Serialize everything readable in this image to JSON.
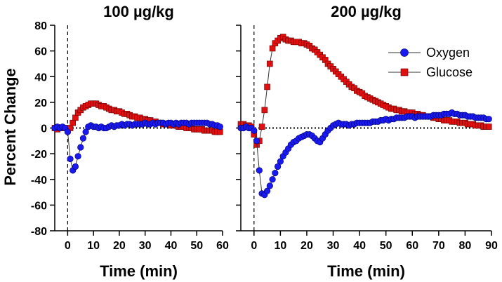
{
  "ylabel": "Percent Change",
  "legend": [
    {
      "name": "Oxygen",
      "color": "#1a1af0",
      "marker": "circle"
    },
    {
      "name": "Glucose",
      "color": "#e01010",
      "marker": "square"
    }
  ],
  "chart_data": [
    {
      "type": "scatter",
      "title": "100 µg/kg",
      "xlabel": "Time (min)",
      "ylabel": "Percent Change",
      "xlim": [
        -5,
        60
      ],
      "ylim": [
        -80,
        80
      ],
      "xticks": [
        0,
        10,
        20,
        30,
        40,
        50,
        60
      ],
      "yticks": [
        -80,
        -60,
        -40,
        -20,
        0,
        20,
        40,
        60,
        80
      ],
      "reference_lines": {
        "y": 0,
        "x": 0
      },
      "series": [
        {
          "name": "Oxygen",
          "x": [
            -5,
            -4,
            -3,
            -2,
            -1,
            0,
            1,
            2,
            3,
            4,
            5,
            6,
            7,
            8,
            9,
            10,
            11,
            12,
            13,
            14,
            15,
            16,
            17,
            18,
            19,
            20,
            21,
            22,
            23,
            24,
            25,
            26,
            27,
            28,
            29,
            30,
            31,
            32,
            33,
            34,
            35,
            36,
            37,
            38,
            39,
            40,
            41,
            42,
            43,
            44,
            45,
            46,
            47,
            48,
            49,
            50,
            51,
            52,
            53,
            54,
            55,
            56,
            57,
            58,
            59
          ],
          "y": [
            0,
            1,
            0,
            1,
            0,
            -3,
            -24,
            -33,
            -30,
            -22,
            -15,
            -8,
            -3,
            1,
            2,
            1,
            1,
            0,
            1,
            0,
            0,
            1,
            2,
            1,
            2,
            2,
            3,
            2,
            3,
            3,
            2,
            3,
            3,
            3,
            3,
            4,
            3,
            3,
            4,
            3,
            4,
            4,
            4,
            3,
            4,
            4,
            3,
            4,
            3,
            4,
            4,
            4,
            3,
            4,
            4,
            4,
            4,
            4,
            4,
            4,
            3,
            3,
            2,
            2,
            1
          ]
        },
        {
          "name": "Glucose",
          "x": [
            -5,
            -4,
            -3,
            -2,
            -1,
            0,
            1,
            2,
            3,
            4,
            5,
            6,
            7,
            8,
            9,
            10,
            11,
            12,
            13,
            14,
            15,
            16,
            17,
            18,
            19,
            20,
            21,
            22,
            23,
            24,
            25,
            26,
            27,
            28,
            29,
            30,
            31,
            32,
            33,
            34,
            35,
            36,
            37,
            38,
            39,
            40,
            41,
            42,
            43,
            44,
            45,
            46,
            47,
            48,
            49,
            50,
            51,
            52,
            53,
            54,
            55,
            56,
            57,
            58,
            59
          ],
          "y": [
            0,
            -1,
            0,
            0,
            0,
            -2,
            0,
            4,
            8,
            12,
            14,
            16,
            17,
            18,
            19,
            19,
            19,
            18,
            17,
            17,
            16,
            15,
            14,
            14,
            13,
            13,
            12,
            11,
            11,
            10,
            9,
            9,
            8,
            8,
            7,
            7,
            6,
            6,
            5,
            5,
            4,
            4,
            3,
            3,
            3,
            2,
            2,
            2,
            1,
            1,
            1,
            0,
            0,
            0,
            -1,
            -1,
            -1,
            -1,
            -2,
            -2,
            -2,
            -2,
            -3,
            -3,
            -3
          ]
        }
      ]
    },
    {
      "type": "scatter",
      "title": "200 µg/kg",
      "xlabel": "Time (min)",
      "ylabel": "",
      "xlim": [
        -5,
        90
      ],
      "ylim": [
        -80,
        80
      ],
      "xticks": [
        0,
        10,
        20,
        30,
        40,
        50,
        60,
        70,
        80,
        90
      ],
      "yticks": [
        -80,
        -60,
        -40,
        -20,
        0,
        20,
        40,
        60,
        80
      ],
      "reference_lines": {
        "y": 0,
        "x": 0
      },
      "series": [
        {
          "name": "Oxygen",
          "x": [
            -5,
            -4,
            -3,
            -2,
            -1,
            0,
            1,
            2,
            3,
            4,
            5,
            6,
            7,
            8,
            9,
            10,
            11,
            12,
            13,
            14,
            15,
            16,
            17,
            18,
            19,
            20,
            21,
            22,
            23,
            24,
            25,
            26,
            27,
            28,
            29,
            30,
            31,
            32,
            33,
            34,
            35,
            36,
            37,
            38,
            39,
            40,
            41,
            42,
            43,
            44,
            45,
            46,
            47,
            48,
            49,
            50,
            51,
            52,
            53,
            54,
            55,
            56,
            57,
            58,
            59,
            60,
            61,
            62,
            63,
            64,
            65,
            66,
            67,
            68,
            69,
            70,
            71,
            72,
            73,
            74,
            75,
            76,
            77,
            78,
            79,
            80,
            81,
            82,
            83,
            84,
            85,
            86,
            87,
            88,
            89
          ],
          "y": [
            0,
            0,
            1,
            0,
            0,
            -2,
            -10,
            -33,
            -51,
            -52,
            -49,
            -45,
            -40,
            -35,
            -30,
            -26,
            -22,
            -19,
            -16,
            -13,
            -11,
            -10,
            -8,
            -7,
            -6,
            -5,
            -5,
            -6,
            -8,
            -10,
            -11,
            -8,
            -5,
            -2,
            0,
            2,
            3,
            4,
            3,
            3,
            3,
            2,
            3,
            3,
            4,
            4,
            4,
            4,
            4,
            4,
            5,
            5,
            5,
            6,
            6,
            7,
            6,
            7,
            7,
            8,
            8,
            8,
            8,
            9,
            9,
            9,
            8,
            9,
            9,
            9,
            9,
            9,
            9,
            10,
            10,
            10,
            10,
            11,
            11,
            11,
            12,
            11,
            11,
            10,
            10,
            10,
            9,
            9,
            9,
            8,
            8,
            8,
            8,
            7,
            7
          ]
        },
        {
          "name": "Glucose",
          "x": [
            -5,
            -4,
            -3,
            -2,
            -1,
            0,
            1,
            2,
            3,
            4,
            5,
            6,
            7,
            8,
            9,
            10,
            11,
            12,
            13,
            14,
            15,
            16,
            17,
            18,
            19,
            20,
            21,
            22,
            23,
            24,
            25,
            26,
            27,
            28,
            29,
            30,
            31,
            32,
            33,
            34,
            35,
            36,
            37,
            38,
            39,
            40,
            41,
            42,
            43,
            44,
            45,
            46,
            47,
            48,
            49,
            50,
            51,
            52,
            53,
            54,
            55,
            56,
            57,
            58,
            59,
            60,
            61,
            62,
            63,
            64,
            65,
            66,
            67,
            68,
            69,
            70,
            71,
            72,
            73,
            74,
            75,
            76,
            77,
            78,
            79,
            80,
            81,
            82,
            83,
            84,
            85,
            86,
            87,
            88,
            89
          ],
          "y": [
            3,
            3,
            2,
            2,
            1,
            -5,
            -13,
            -10,
            1,
            14,
            32,
            50,
            62,
            66,
            68,
            70,
            71,
            69,
            68,
            68,
            67,
            67,
            67,
            66,
            66,
            65,
            64,
            62,
            61,
            59,
            57,
            55,
            53,
            50,
            48,
            46,
            44,
            42,
            40,
            38,
            36,
            34,
            32,
            31,
            29,
            28,
            27,
            25,
            24,
            23,
            22,
            21,
            20,
            19,
            18,
            17,
            16,
            15,
            15,
            14,
            14,
            13,
            13,
            12,
            12,
            12,
            11,
            11,
            10,
            10,
            9,
            9,
            9,
            8,
            8,
            7,
            7,
            6,
            6,
            6,
            5,
            5,
            5,
            4,
            4,
            4,
            3,
            3,
            3,
            2,
            2,
            2,
            1,
            1,
            1
          ]
        }
      ]
    }
  ]
}
